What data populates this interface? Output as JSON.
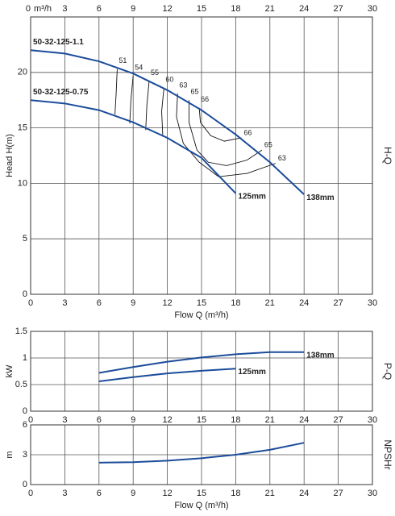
{
  "chart_data": [
    {
      "type": "line",
      "top_x_unit": "m³/h",
      "xlabel": "Flow Q (m³/h)",
      "ylabel": "Head H(m)",
      "side_label": "H-Q",
      "xlim": [
        0,
        30
      ],
      "xticks": [
        0,
        3,
        6,
        9,
        12,
        15,
        18,
        21,
        24,
        27,
        30
      ],
      "ylim": [
        0,
        25
      ],
      "yticks": [
        0,
        5,
        10,
        15,
        20
      ],
      "grid": true,
      "annotations": [
        "50-32-125-1.1",
        "50-32-125-0.75"
      ],
      "series": [
        {
          "name": "138mm",
          "color": "#1b4c9a",
          "x": [
            0,
            3,
            6,
            9,
            12,
            15,
            18,
            21,
            24
          ],
          "y": [
            22,
            21.7,
            21,
            19.9,
            18.4,
            16.6,
            14.4,
            11.9,
            9
          ]
        },
        {
          "name": "125mm",
          "color": "#1b4c9a",
          "x": [
            0,
            3,
            6,
            9,
            12,
            15,
            18
          ],
          "y": [
            17.5,
            17.2,
            16.6,
            15.5,
            14.1,
            12.3,
            9.1
          ]
        }
      ],
      "efficiency_lines": [
        {
          "value": 51,
          "both_ends": false,
          "x": [
            7.6,
            7.5,
            7.4
          ],
          "y": [
            20.3,
            18,
            16.2
          ]
        },
        {
          "value": 54,
          "both_ends": false,
          "x": [
            9.0,
            8.8,
            8.7
          ],
          "y": [
            19.7,
            17.5,
            15.4
          ]
        },
        {
          "value": 55,
          "both_ends": false,
          "x": [
            10.4,
            10.2,
            10.1
          ],
          "y": [
            19.2,
            17,
            14.8
          ]
        },
        {
          "value": 60,
          "both_ends": false,
          "x": [
            11.7,
            11.5,
            11.6
          ],
          "y": [
            18.6,
            16.5,
            14.2
          ]
        },
        {
          "value": 63,
          "both_ends": true,
          "x": [
            12.9,
            12.8,
            13.4,
            14.8,
            16.5,
            19,
            21.5
          ],
          "y": [
            18.1,
            16,
            13.6,
            11.9,
            10.6,
            10.9,
            11.8
          ]
        },
        {
          "value": 65,
          "both_ends": true,
          "x": [
            13.9,
            13.9,
            14.6,
            15.6,
            17.2,
            19,
            20.3
          ],
          "y": [
            17.5,
            15.5,
            13,
            11.9,
            11.6,
            12.1,
            13
          ]
        },
        {
          "value": 66,
          "both_ends": true,
          "x": [
            14.8,
            14.9,
            15.8,
            17,
            18.5
          ],
          "y": [
            16.8,
            15.5,
            14.3,
            13.8,
            14.1
          ]
        }
      ]
    },
    {
      "type": "line",
      "ylabel": "kW",
      "side_label": "P-Q",
      "xlim": [
        0,
        30
      ],
      "xticks": [
        0,
        3,
        6,
        9,
        12,
        15,
        18,
        21,
        24,
        27,
        30
      ],
      "ylim": [
        0,
        1.5
      ],
      "yticks": [
        0,
        0.5,
        1,
        1.5
      ],
      "grid": true,
      "series": [
        {
          "name": "138mm",
          "color": "#1b4c9a",
          "x": [
            6,
            9,
            12,
            15,
            18,
            21,
            24
          ],
          "y": [
            0.72,
            0.83,
            0.93,
            1.01,
            1.07,
            1.11,
            1.11
          ]
        },
        {
          "name": "125mm",
          "color": "#1b4c9a",
          "x": [
            6,
            9,
            12,
            15,
            18
          ],
          "y": [
            0.56,
            0.64,
            0.71,
            0.76,
            0.8
          ]
        }
      ]
    },
    {
      "type": "line",
      "xlabel": "Flow Q (m³/h)",
      "ylabel": "m",
      "side_label": "NPSHr",
      "xlim": [
        0,
        30
      ],
      "xticks": [
        0,
        3,
        6,
        9,
        12,
        15,
        18,
        21,
        24,
        27,
        30
      ],
      "ylim": [
        0,
        6
      ],
      "yticks": [
        0,
        3,
        6
      ],
      "grid": true,
      "series": [
        {
          "name": "NPSHr",
          "color": "#1b4c9a",
          "x": [
            6,
            9,
            12,
            15,
            18,
            21,
            24
          ],
          "y": [
            2.2,
            2.25,
            2.4,
            2.65,
            3.0,
            3.5,
            4.2
          ]
        }
      ]
    }
  ]
}
